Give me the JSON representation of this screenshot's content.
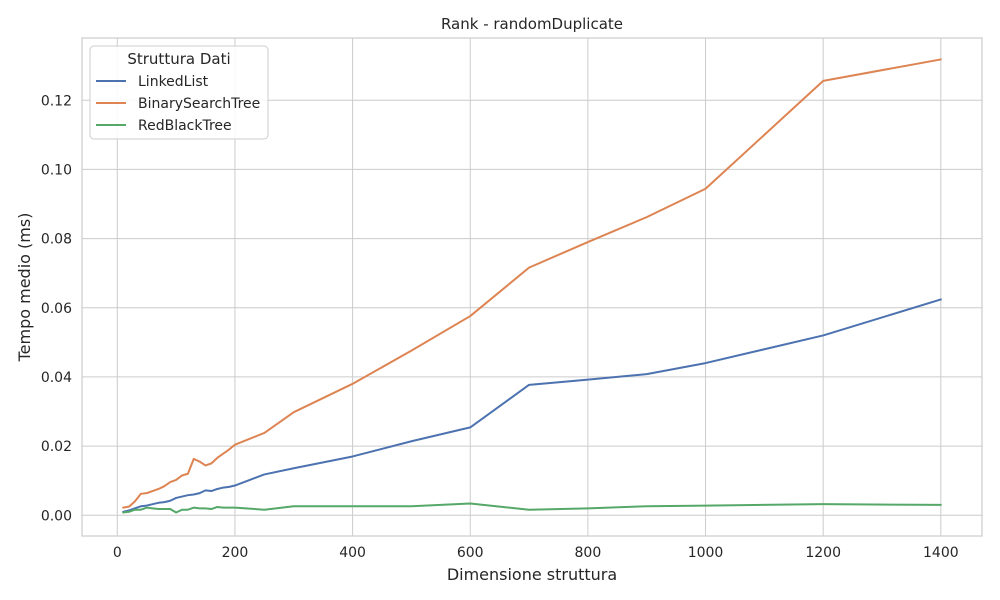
{
  "chart_data": {
    "type": "line",
    "title": "Rank - randomDuplicate",
    "xlabel": "Dimensione struttura",
    "ylabel": "Tempo medio (ms)",
    "xlim": [
      -60,
      1470
    ],
    "ylim": [
      -0.006,
      0.138
    ],
    "xticks": [
      0,
      200,
      400,
      600,
      800,
      1000,
      1200,
      1400
    ],
    "xtick_labels": [
      "0",
      "200",
      "400",
      "600",
      "800",
      "1000",
      "1200",
      "1400"
    ],
    "yticks": [
      0.0,
      0.02,
      0.04,
      0.06,
      0.08,
      0.1,
      0.12
    ],
    "ytick_labels": [
      "0.00",
      "0.02",
      "0.04",
      "0.06",
      "0.08",
      "0.10",
      "0.12"
    ],
    "grid": true,
    "legend": {
      "title": "Struttura Dati",
      "placement": "top-left"
    },
    "x": [
      10,
      20,
      30,
      40,
      50,
      60,
      70,
      80,
      90,
      100,
      110,
      120,
      130,
      140,
      150,
      160,
      170,
      180,
      190,
      200,
      250,
      300,
      400,
      500,
      600,
      700,
      800,
      900,
      1000,
      1200,
      1400
    ],
    "series": [
      {
        "name": "LinkedList",
        "color": "#4c72b0",
        "values": [
          0.001,
          0.0014,
          0.002,
          0.0026,
          0.0028,
          0.0032,
          0.0036,
          0.0038,
          0.0042,
          0.005,
          0.0054,
          0.0058,
          0.006,
          0.0064,
          0.0072,
          0.007,
          0.0076,
          0.008,
          0.0082,
          0.0086,
          0.0118,
          0.0136,
          0.017,
          0.0214,
          0.0254,
          0.0377,
          0.0392,
          0.0408,
          0.044,
          0.052,
          0.0624
        ]
      },
      {
        "name": "BinarySearchTree",
        "color": "#dd8452",
        "values": [
          0.0022,
          0.0025,
          0.004,
          0.0062,
          0.0064,
          0.007,
          0.0076,
          0.0084,
          0.0096,
          0.0102,
          0.0115,
          0.012,
          0.0163,
          0.0155,
          0.0144,
          0.015,
          0.0166,
          0.0178,
          0.019,
          0.0204,
          0.0238,
          0.0298,
          0.038,
          0.0476,
          0.0576,
          0.0716,
          0.079,
          0.0862,
          0.0944,
          0.1256,
          0.1318
        ]
      },
      {
        "name": "RedBlackTree",
        "color": "#55a868",
        "values": [
          0.0008,
          0.001,
          0.0016,
          0.0016,
          0.0022,
          0.002,
          0.0018,
          0.0018,
          0.0018,
          0.0008,
          0.0016,
          0.0016,
          0.0022,
          0.002,
          0.002,
          0.0018,
          0.0024,
          0.0022,
          0.0022,
          0.0022,
          0.0016,
          0.0026,
          0.0026,
          0.0026,
          0.0034,
          0.0016,
          0.002,
          0.0026,
          0.0028,
          0.0032,
          0.003
        ]
      }
    ]
  }
}
